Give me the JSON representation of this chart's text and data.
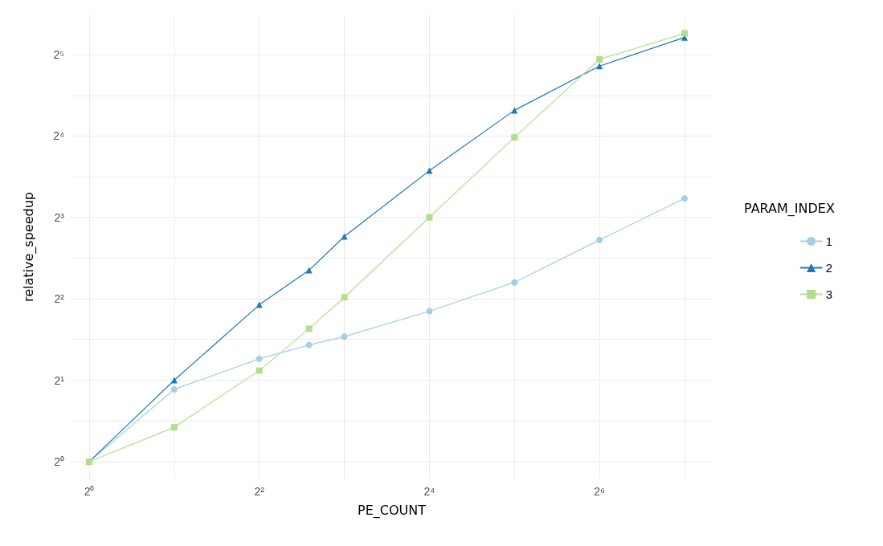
{
  "chart_data": {
    "type": "line",
    "xlabel": "PE_COUNT",
    "ylabel": "relative_speedup",
    "legend_title": "PARAM_INDEX",
    "log": "xy",
    "grid": true,
    "legend": "right",
    "line_style": "solid",
    "x": [
      1,
      2,
      4,
      6,
      8,
      16,
      32,
      64,
      128
    ],
    "xlim": [
      0.86,
      161
    ],
    "ylim": [
      0.86,
      45
    ],
    "xticks": [
      {
        "value": 1,
        "label": "2⁰"
      },
      {
        "value": 2,
        "label": null
      },
      {
        "value": 4,
        "label": "2²"
      },
      {
        "value": 8,
        "label": null
      },
      {
        "value": 16,
        "label": "2⁴"
      },
      {
        "value": 32,
        "label": null
      },
      {
        "value": 64,
        "label": "2⁶"
      },
      {
        "value": 128,
        "label": null
      }
    ],
    "yticks": [
      {
        "value": 1,
        "label": "2⁰"
      },
      {
        "value": 1.41,
        "label": null
      },
      {
        "value": 2,
        "label": "2¹"
      },
      {
        "value": 2.83,
        "label": null
      },
      {
        "value": 4,
        "label": "2²"
      },
      {
        "value": 5.66,
        "label": null
      },
      {
        "value": 8,
        "label": "2³"
      },
      {
        "value": 11.3,
        "label": null
      },
      {
        "value": 16,
        "label": "2⁴"
      },
      {
        "value": 22.6,
        "label": null
      },
      {
        "value": 32,
        "label": "2⁵"
      }
    ],
    "series": [
      {
        "name": "1",
        "color": "#a6cee3",
        "marker": "circle",
        "values": [
          1,
          1.85,
          2.4,
          2.7,
          2.9,
          3.6,
          4.6,
          6.6,
          9.4
        ]
      },
      {
        "name": "2",
        "color": "#1f78b4",
        "marker": "triangle",
        "values": [
          1,
          2.0,
          3.8,
          5.1,
          6.8,
          11.9,
          19.9,
          29,
          37
        ]
      },
      {
        "name": "3",
        "color": "#b2df8a",
        "marker": "square",
        "values": [
          1,
          1.34,
          2.17,
          3.1,
          4.05,
          8.0,
          15.8,
          30.7,
          38.3
        ]
      }
    ]
  }
}
